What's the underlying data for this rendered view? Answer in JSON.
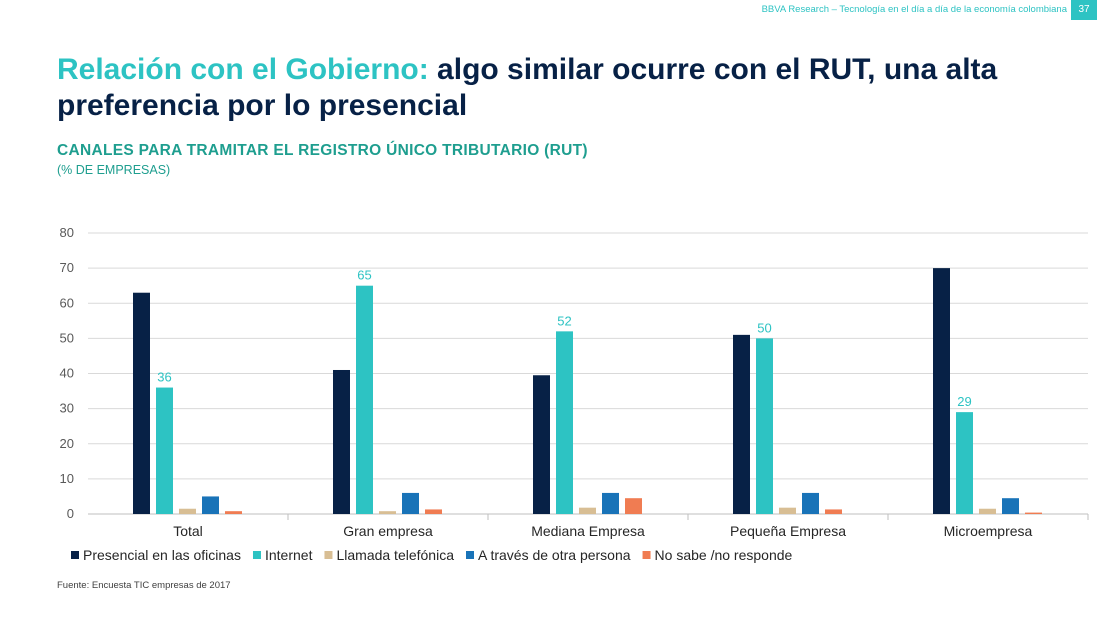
{
  "header": {
    "text": "BBVA Research – Tecnología en el día a día de la economía colombiana",
    "page_number": "37"
  },
  "title": {
    "accent": "Relación con el Gobierno:",
    "rest": " algo similar ocurre con el RUT, una alta preferencia por lo presencial"
  },
  "chart_data": {
    "type": "bar",
    "title": "CANALES PARA TRAMITAR EL REGISTRO ÚNICO TRIBUTARIO (RUT)",
    "subtitle": "(% DE EMPRESAS)",
    "categories": [
      "Total",
      "Gran empresa",
      "Mediana Empresa",
      "Pequeña Empresa",
      "Microempresa"
    ],
    "series": [
      {
        "name": "Presencial en las oficinas",
        "color": "#072146",
        "values": [
          63,
          41,
          39.5,
          51,
          70
        ]
      },
      {
        "name": "Internet",
        "color": "#2dc3c3",
        "values": [
          36,
          65,
          52,
          50,
          29
        ],
        "data_labels": [
          "36",
          "65",
          "52",
          "50",
          "29"
        ]
      },
      {
        "name": "Llamada telefónica",
        "color": "#d8be94",
        "values": [
          1.5,
          0.8,
          1.8,
          1.8,
          1.5
        ]
      },
      {
        "name": "A través de otra persona",
        "color": "#1973b8",
        "values": [
          5,
          6,
          6,
          6,
          4.5
        ]
      },
      {
        "name": "No sabe /no responde",
        "color": "#f07c52",
        "values": [
          0.8,
          1.3,
          4.5,
          1.3,
          0.4
        ]
      }
    ],
    "ylim": [
      0,
      80
    ],
    "yticks": [
      "0",
      "10",
      "20",
      "30",
      "40",
      "50",
      "60",
      "70",
      "80"
    ],
    "grid": true,
    "legend": "bottom"
  },
  "source": "Fuente: Encuesta TIC empresas de 2017"
}
